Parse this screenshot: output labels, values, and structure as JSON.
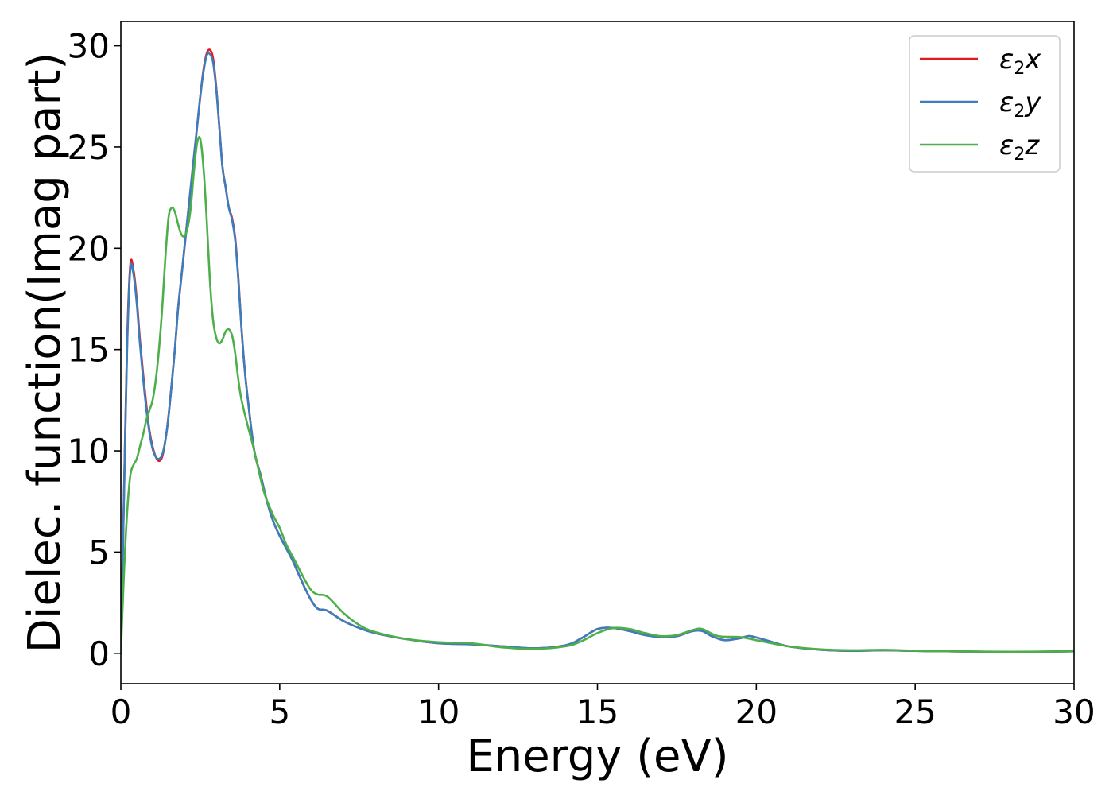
{
  "chart_data": {
    "type": "line",
    "title": "",
    "xlabel": "Energy (eV)",
    "ylabel": "Dielec. function(Imag part)",
    "xlim": [
      0,
      30
    ],
    "ylim": [
      -1.5,
      31.2
    ],
    "xticks": [
      0,
      5,
      10,
      15,
      20,
      25,
      30
    ],
    "yticks": [
      0,
      5,
      10,
      15,
      20,
      25,
      30
    ],
    "grid": false,
    "legend_position": "top-right",
    "series": [
      {
        "name": "ε₂x",
        "legend_base": "ε",
        "legend_sub": "2",
        "legend_var": "x",
        "color": "#e41a1c",
        "points": [
          [
            0,
            0
          ],
          [
            0.1,
            8
          ],
          [
            0.2,
            15.5
          ],
          [
            0.3,
            19.2
          ],
          [
            0.4,
            18.9
          ],
          [
            0.5,
            17.5
          ],
          [
            0.6,
            15.5
          ],
          [
            0.7,
            13.8
          ],
          [
            0.8,
            12.3
          ],
          [
            0.9,
            11
          ],
          [
            1.0,
            10.2
          ],
          [
            1.1,
            9.7
          ],
          [
            1.2,
            9.5
          ],
          [
            1.3,
            9.7
          ],
          [
            1.4,
            10.5
          ],
          [
            1.5,
            11.7
          ],
          [
            1.6,
            13.3
          ],
          [
            1.7,
            15
          ],
          [
            1.8,
            17
          ],
          [
            1.9,
            18.5
          ],
          [
            2.0,
            20
          ],
          [
            2.1,
            21.5
          ],
          [
            2.2,
            23
          ],
          [
            2.3,
            24.5
          ],
          [
            2.4,
            26
          ],
          [
            2.5,
            27.5
          ],
          [
            2.6,
            28.8
          ],
          [
            2.7,
            29.6
          ],
          [
            2.8,
            29.8
          ],
          [
            2.9,
            29.4
          ],
          [
            3.0,
            28
          ],
          [
            3.1,
            26
          ],
          [
            3.2,
            24
          ],
          [
            3.3,
            23
          ],
          [
            3.4,
            22
          ],
          [
            3.5,
            21.5
          ],
          [
            3.6,
            20.5
          ],
          [
            3.7,
            18.5
          ],
          [
            3.8,
            16
          ],
          [
            3.9,
            14
          ],
          [
            4.0,
            12.5
          ],
          [
            4.2,
            10
          ],
          [
            4.4,
            8.8
          ],
          [
            4.6,
            7.5
          ],
          [
            4.8,
            6.5
          ],
          [
            5.0,
            5.8
          ],
          [
            5.2,
            5.2
          ],
          [
            5.4,
            4.6
          ],
          [
            5.6,
            3.9
          ],
          [
            5.8,
            3.2
          ],
          [
            6.0,
            2.6
          ],
          [
            6.2,
            2.2
          ],
          [
            6.5,
            2.1
          ],
          [
            7.0,
            1.6
          ],
          [
            7.5,
            1.25
          ],
          [
            8.0,
            1.0
          ],
          [
            9.0,
            0.7
          ],
          [
            10.0,
            0.5
          ],
          [
            11.0,
            0.45
          ],
          [
            12.0,
            0.35
          ],
          [
            13.0,
            0.25
          ],
          [
            14.0,
            0.4
          ],
          [
            14.5,
            0.75
          ],
          [
            15.0,
            1.2
          ],
          [
            15.5,
            1.25
          ],
          [
            16.0,
            1.1
          ],
          [
            16.5,
            0.9
          ],
          [
            17.0,
            0.8
          ],
          [
            17.5,
            0.85
          ],
          [
            18.0,
            1.1
          ],
          [
            18.3,
            1.1
          ],
          [
            18.6,
            0.85
          ],
          [
            19.0,
            0.65
          ],
          [
            19.5,
            0.75
          ],
          [
            19.8,
            0.85
          ],
          [
            20.3,
            0.65
          ],
          [
            21.0,
            0.35
          ],
          [
            22.0,
            0.18
          ],
          [
            23.0,
            0.12
          ],
          [
            24.0,
            0.15
          ],
          [
            25.0,
            0.12
          ],
          [
            26.0,
            0.1
          ],
          [
            28.0,
            0.07
          ],
          [
            30.0,
            0.1
          ]
        ]
      },
      {
        "name": "ε₂y",
        "legend_base": "ε",
        "legend_sub": "2",
        "legend_var": "y",
        "color": "#3b7dbd",
        "points": [
          [
            0,
            0
          ],
          [
            0.1,
            7.8
          ],
          [
            0.2,
            15.2
          ],
          [
            0.3,
            19
          ],
          [
            0.4,
            18.7
          ],
          [
            0.5,
            17.3
          ],
          [
            0.6,
            15.3
          ],
          [
            0.7,
            13.6
          ],
          [
            0.8,
            12.1
          ],
          [
            0.9,
            10.9
          ],
          [
            1.0,
            10.1
          ],
          [
            1.1,
            9.7
          ],
          [
            1.2,
            9.6
          ],
          [
            1.3,
            9.8
          ],
          [
            1.4,
            10.5
          ],
          [
            1.5,
            11.7
          ],
          [
            1.6,
            13.3
          ],
          [
            1.7,
            15
          ],
          [
            1.8,
            17
          ],
          [
            1.9,
            18.5
          ],
          [
            2.0,
            20
          ],
          [
            2.1,
            21.5
          ],
          [
            2.2,
            23
          ],
          [
            2.3,
            24.5
          ],
          [
            2.4,
            26
          ],
          [
            2.5,
            27.5
          ],
          [
            2.6,
            28.7
          ],
          [
            2.7,
            29.5
          ],
          [
            2.8,
            29.6
          ],
          [
            2.9,
            29.2
          ],
          [
            3.0,
            27.9
          ],
          [
            3.1,
            26
          ],
          [
            3.2,
            24
          ],
          [
            3.3,
            23
          ],
          [
            3.4,
            22
          ],
          [
            3.5,
            21.4
          ],
          [
            3.6,
            20.4
          ],
          [
            3.7,
            18.4
          ],
          [
            3.8,
            16
          ],
          [
            3.9,
            14
          ],
          [
            4.0,
            12.5
          ],
          [
            4.2,
            10
          ],
          [
            4.4,
            8.8
          ],
          [
            4.6,
            7.5
          ],
          [
            4.8,
            6.5
          ],
          [
            5.0,
            5.8
          ],
          [
            5.2,
            5.2
          ],
          [
            5.4,
            4.6
          ],
          [
            5.6,
            3.9
          ],
          [
            5.8,
            3.2
          ],
          [
            6.0,
            2.6
          ],
          [
            6.2,
            2.2
          ],
          [
            6.5,
            2.1
          ],
          [
            7.0,
            1.6
          ],
          [
            7.5,
            1.25
          ],
          [
            8.0,
            1.0
          ],
          [
            9.0,
            0.7
          ],
          [
            10.0,
            0.5
          ],
          [
            11.0,
            0.45
          ],
          [
            12.0,
            0.35
          ],
          [
            13.0,
            0.25
          ],
          [
            14.0,
            0.4
          ],
          [
            14.5,
            0.75
          ],
          [
            15.0,
            1.2
          ],
          [
            15.5,
            1.25
          ],
          [
            16.0,
            1.1
          ],
          [
            16.5,
            0.9
          ],
          [
            17.0,
            0.8
          ],
          [
            17.5,
            0.85
          ],
          [
            18.0,
            1.1
          ],
          [
            18.3,
            1.1
          ],
          [
            18.6,
            0.85
          ],
          [
            19.0,
            0.65
          ],
          [
            19.5,
            0.75
          ],
          [
            19.8,
            0.85
          ],
          [
            20.3,
            0.65
          ],
          [
            21.0,
            0.35
          ],
          [
            22.0,
            0.18
          ],
          [
            23.0,
            0.12
          ],
          [
            24.0,
            0.15
          ],
          [
            25.0,
            0.12
          ],
          [
            26.0,
            0.1
          ],
          [
            28.0,
            0.07
          ],
          [
            30.0,
            0.1
          ]
        ]
      },
      {
        "name": "ε₂z",
        "legend_base": "ε",
        "legend_sub": "2",
        "legend_var": "z",
        "color": "#4daf4a",
        "points": [
          [
            0,
            0
          ],
          [
            0.1,
            4
          ],
          [
            0.2,
            7
          ],
          [
            0.3,
            8.8
          ],
          [
            0.4,
            9.3
          ],
          [
            0.5,
            9.6
          ],
          [
            0.6,
            10.2
          ],
          [
            0.7,
            10.8
          ],
          [
            0.8,
            11.5
          ],
          [
            0.9,
            12
          ],
          [
            1.0,
            12.5
          ],
          [
            1.1,
            13.5
          ],
          [
            1.2,
            15
          ],
          [
            1.3,
            17
          ],
          [
            1.4,
            19.5
          ],
          [
            1.5,
            21.5
          ],
          [
            1.6,
            22
          ],
          [
            1.7,
            21.8
          ],
          [
            1.8,
            21.2
          ],
          [
            1.9,
            20.7
          ],
          [
            2.0,
            20.6
          ],
          [
            2.1,
            21
          ],
          [
            2.2,
            22
          ],
          [
            2.3,
            23.8
          ],
          [
            2.4,
            25.2
          ],
          [
            2.5,
            25.4
          ],
          [
            2.6,
            24
          ],
          [
            2.7,
            21.5
          ],
          [
            2.8,
            18.5
          ],
          [
            2.9,
            16.5
          ],
          [
            3.0,
            15.6
          ],
          [
            3.1,
            15.3
          ],
          [
            3.2,
            15.5
          ],
          [
            3.3,
            15.9
          ],
          [
            3.4,
            16
          ],
          [
            3.5,
            15.7
          ],
          [
            3.6,
            14.8
          ],
          [
            3.7,
            13.5
          ],
          [
            3.8,
            12.5
          ],
          [
            4.0,
            11.2
          ],
          [
            4.2,
            10
          ],
          [
            4.5,
            8
          ],
          [
            4.8,
            6.8
          ],
          [
            5.0,
            6.2
          ],
          [
            5.2,
            5.4
          ],
          [
            5.5,
            4.5
          ],
          [
            5.8,
            3.6
          ],
          [
            6.0,
            3.1
          ],
          [
            6.2,
            2.9
          ],
          [
            6.5,
            2.8
          ],
          [
            7.0,
            2.0
          ],
          [
            7.5,
            1.4
          ],
          [
            8.0,
            1.05
          ],
          [
            9.0,
            0.7
          ],
          [
            10.0,
            0.55
          ],
          [
            11.0,
            0.5
          ],
          [
            12.0,
            0.3
          ],
          [
            13.0,
            0.22
          ],
          [
            14.0,
            0.35
          ],
          [
            14.5,
            0.6
          ],
          [
            15.0,
            1.0
          ],
          [
            15.5,
            1.25
          ],
          [
            16.0,
            1.2
          ],
          [
            16.5,
            1.0
          ],
          [
            17.0,
            0.85
          ],
          [
            17.5,
            0.9
          ],
          [
            18.0,
            1.15
          ],
          [
            18.3,
            1.2
          ],
          [
            18.8,
            0.85
          ],
          [
            19.5,
            0.8
          ],
          [
            20.0,
            0.65
          ],
          [
            21.0,
            0.35
          ],
          [
            22.0,
            0.2
          ],
          [
            23.0,
            0.15
          ],
          [
            24.0,
            0.17
          ],
          [
            25.0,
            0.13
          ],
          [
            26.0,
            0.1
          ],
          [
            28.0,
            0.08
          ],
          [
            30.0,
            0.1
          ]
        ]
      }
    ]
  }
}
